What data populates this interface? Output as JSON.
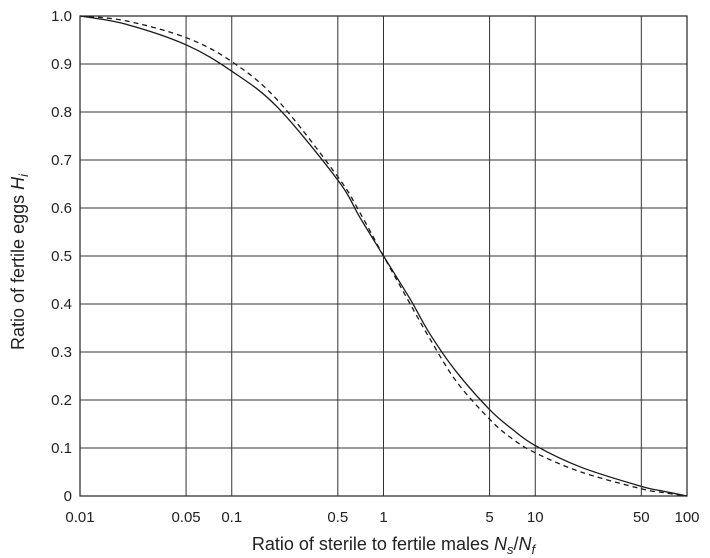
{
  "chart_data": {
    "type": "line",
    "xscale": "log",
    "xlim": [
      0.01,
      100
    ],
    "ylim": [
      0,
      1.0
    ],
    "grid": true,
    "xlabel": {
      "prefix": "Ratio of sterile to fertile males ",
      "var1": "N",
      "sub1": "s",
      "sep": "/",
      "var2": "N",
      "sub2": "f"
    },
    "ylabel": {
      "prefix": "Ratio of fertile eggs ",
      "var": "H",
      "sub": "i"
    },
    "x_ticks": [
      0.01,
      0.05,
      0.1,
      0.5,
      1,
      5,
      10,
      50,
      100
    ],
    "x_tick_labels": [
      "0.01",
      "0.05",
      "0.1",
      "0.5",
      "1",
      "5",
      "10",
      "50",
      "100"
    ],
    "y_ticks": [
      0,
      0.1,
      0.2,
      0.3,
      0.4,
      0.5,
      0.6,
      0.7,
      0.8,
      0.9,
      1.0
    ],
    "y_tick_labels": [
      "0",
      "0.1",
      "0.2",
      "0.3",
      "0.4",
      "0.5",
      "0.6",
      "0.7",
      "0.8",
      "0.9",
      "1.0"
    ],
    "series": [
      {
        "style": "solid",
        "color": "#1a1a1a",
        "x": [
          0.01,
          0.02,
          0.05,
          0.1,
          0.2,
          0.5,
          0.7,
          1,
          1.5,
          2,
          3,
          5,
          7,
          10,
          20,
          50,
          70,
          100
        ],
        "y": [
          1.0,
          0.983,
          0.94,
          0.885,
          0.81,
          0.658,
          0.58,
          0.5,
          0.41,
          0.34,
          0.26,
          0.18,
          0.14,
          0.105,
          0.06,
          0.02,
          0.01,
          0.0
        ]
      },
      {
        "style": "dashed",
        "color": "#1a1a1a",
        "x": [
          0.01,
          0.02,
          0.05,
          0.1,
          0.2,
          0.5,
          0.7,
          1,
          1.5,
          2,
          3,
          5,
          7,
          10,
          20,
          50,
          70,
          100
        ],
        "y": [
          1.0,
          0.99,
          0.955,
          0.905,
          0.825,
          0.665,
          0.59,
          0.5,
          0.4,
          0.33,
          0.24,
          0.16,
          0.12,
          0.09,
          0.05,
          0.015,
          0.007,
          0.0
        ]
      }
    ]
  }
}
